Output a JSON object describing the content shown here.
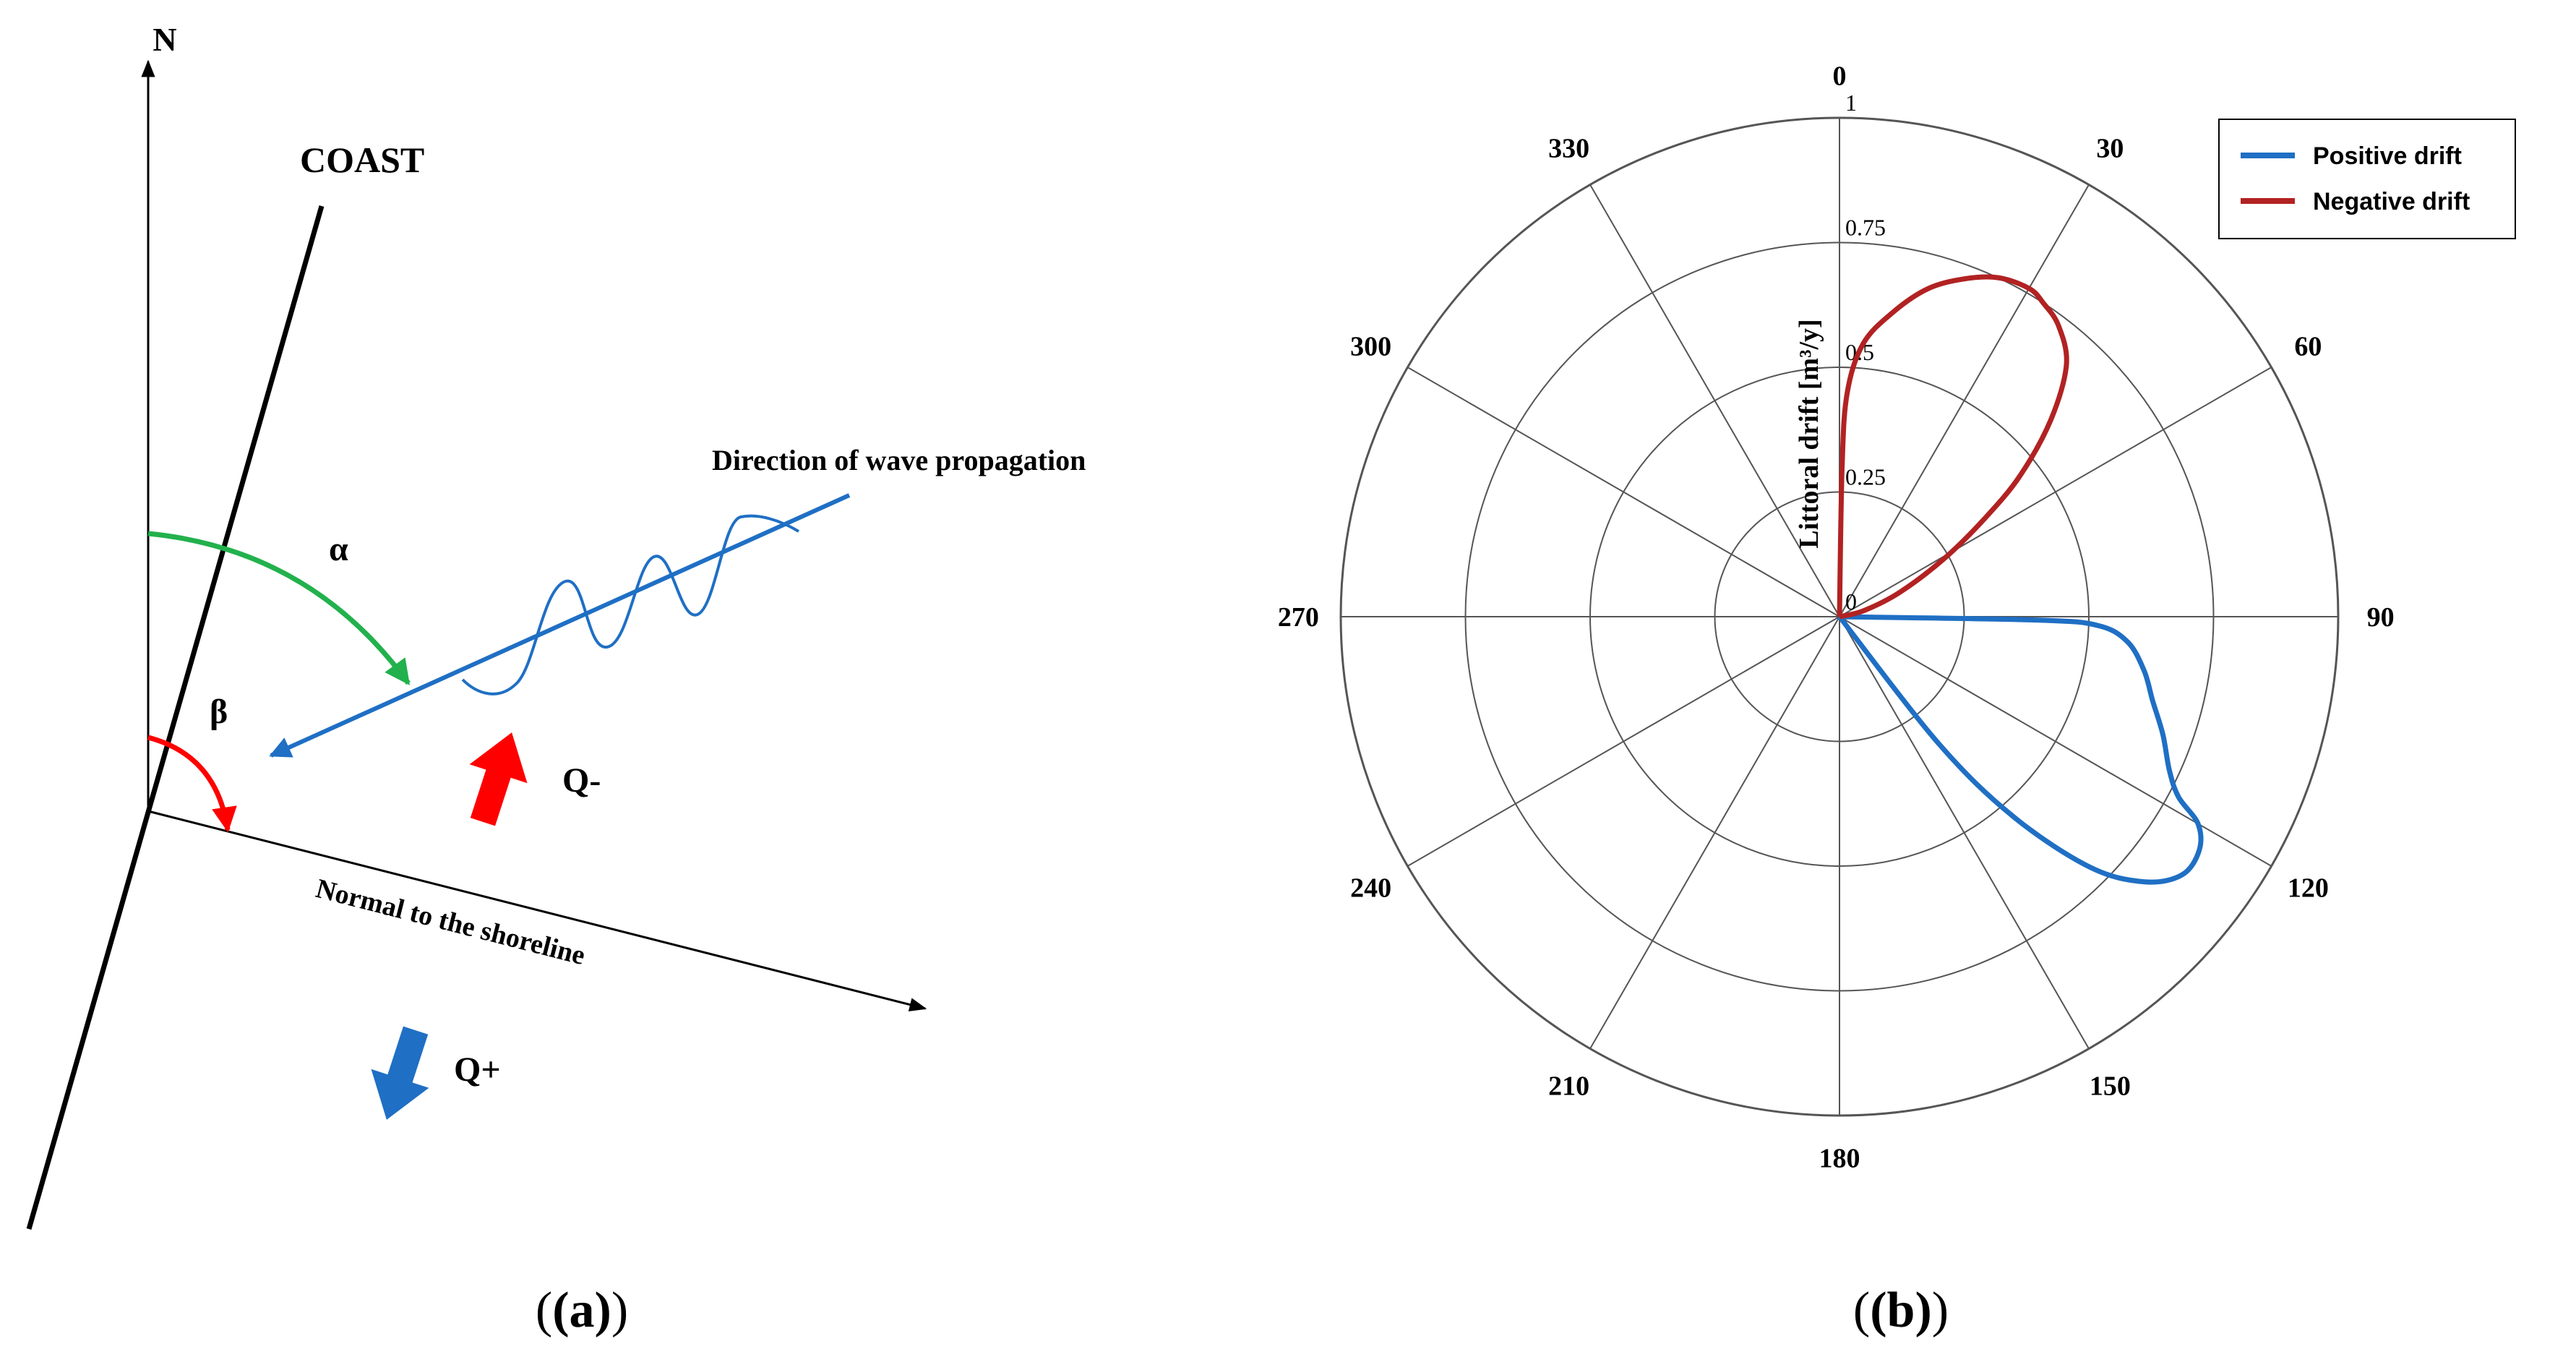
{
  "panel_a": {
    "north_label": "N",
    "coast_label": "COAST",
    "wave_label": "Direction of wave propagation",
    "normal_label": "Normal to the shoreline",
    "alpha_label": "α",
    "beta_label": "β",
    "q_minus_label": "Q-",
    "q_plus_label": "Q+",
    "caption": "(a)",
    "colors": {
      "coast": "#000000",
      "wave": "#1f6fc4",
      "alpha_arc": "#22b14c",
      "beta_arc": "#ff0000",
      "q_minus_arrow": "#ff0000",
      "q_plus_arrow": "#1f6fc4"
    }
  },
  "panel_b": {
    "caption": "(b)",
    "chart_data": {
      "type": "polar-line",
      "radial_label": "Littoral drift [m³/y]",
      "radial_range": [
        0,
        1
      ],
      "radial_ticks": [
        "0",
        "0.25",
        "0.5",
        "0.75",
        "1"
      ],
      "angular_ticks": [
        "0",
        "30",
        "60",
        "90",
        "120",
        "150",
        "180",
        "210",
        "240",
        "270",
        "300",
        "330"
      ],
      "angular_direction": "clockwise, 0 at top",
      "grid": true,
      "legend_position": "top-right",
      "series": [
        {
          "name": "Positive drift",
          "color": "#1f6fc4",
          "points": [
            [
              90,
              0.0
            ],
            [
              91,
              0.4
            ],
            [
              92,
              0.52
            ],
            [
              95,
              0.58
            ],
            [
              100,
              0.62
            ],
            [
              105,
              0.65
            ],
            [
              110,
              0.69
            ],
            [
              115,
              0.73
            ],
            [
              118,
              0.77
            ],
            [
              120,
              0.83
            ],
            [
              123,
              0.86
            ],
            [
              127,
              0.86
            ],
            [
              131,
              0.81
            ],
            [
              135,
              0.71
            ],
            [
              139,
              0.53
            ],
            [
              142,
              0.32
            ],
            [
              144,
              0.0
            ]
          ]
        },
        {
          "name": "Negative drift",
          "color": "#b22222",
          "points": [
            [
              1,
              0.0
            ],
            [
              1,
              0.3
            ],
            [
              2,
              0.45
            ],
            [
              5,
              0.55
            ],
            [
              10,
              0.62
            ],
            [
              15,
              0.68
            ],
            [
              20,
              0.72
            ],
            [
              25,
              0.75
            ],
            [
              30,
              0.76
            ],
            [
              33,
              0.75
            ],
            [
              37,
              0.73
            ],
            [
              42,
              0.68
            ],
            [
              47,
              0.58
            ],
            [
              52,
              0.46
            ],
            [
              56,
              0.35
            ],
            [
              61,
              0.24
            ],
            [
              68,
              0.13
            ],
            [
              76,
              0.05
            ],
            [
              85,
              0.0
            ]
          ]
        }
      ]
    }
  }
}
